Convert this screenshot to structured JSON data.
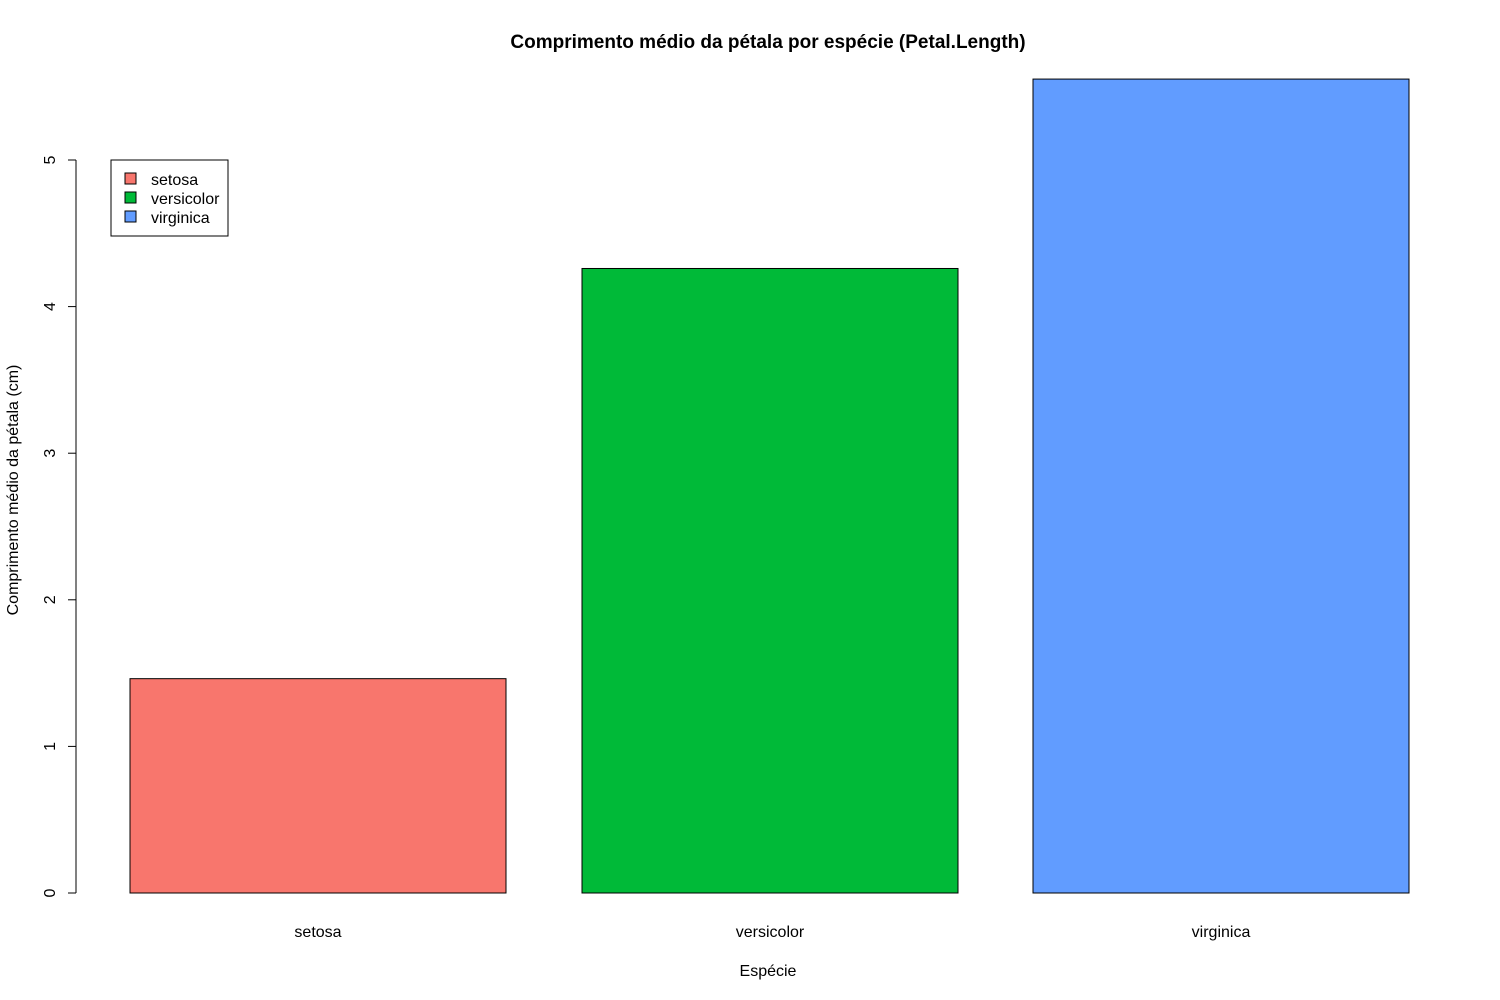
{
  "chart_data": {
    "type": "bar",
    "title": "Comprimento médio da pétala por espécie (Petal.Length)",
    "xlabel": "Espécie",
    "ylabel": "Comprimento médio da pétala (cm)",
    "categories": [
      "setosa",
      "versicolor",
      "virginica"
    ],
    "values": [
      1.462,
      4.26,
      5.552
    ],
    "colors": [
      "#F8766D",
      "#00BA38",
      "#619CFF"
    ],
    "ylim": [
      0,
      5.552
    ],
    "yticks": [
      0,
      1,
      2,
      3,
      4,
      5
    ],
    "grid": false,
    "legend": {
      "position": "top-left",
      "entries": [
        "setosa",
        "versicolor",
        "virginica"
      ]
    }
  }
}
